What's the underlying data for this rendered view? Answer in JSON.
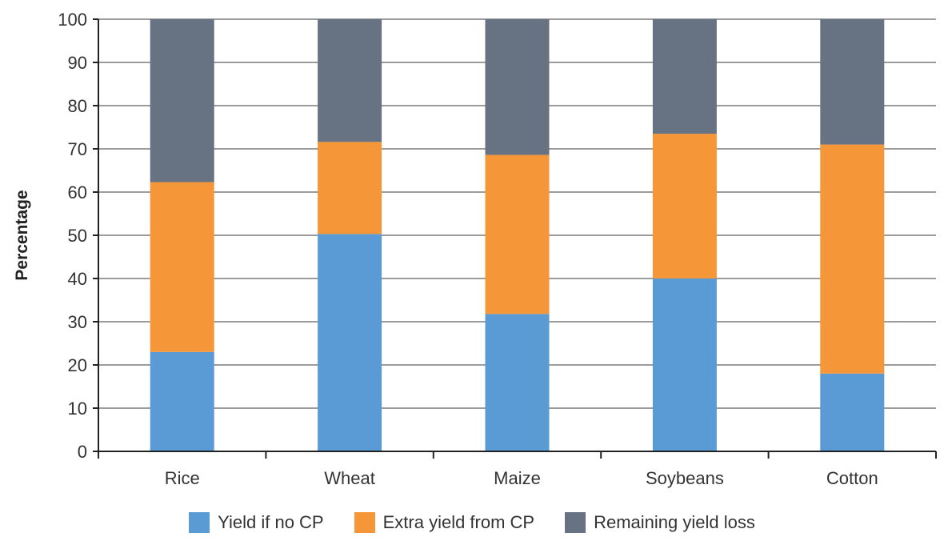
{
  "chart_data": {
    "type": "bar",
    "stacked": true,
    "title": "",
    "xlabel": "",
    "ylabel": "Percentage",
    "ylim": [
      0,
      100
    ],
    "yticks": [
      0,
      10,
      20,
      30,
      40,
      50,
      60,
      70,
      80,
      90,
      100
    ],
    "grid": true,
    "legend_position": "bottom",
    "categories": [
      "Rice",
      "Wheat",
      "Maize",
      "Soybeans",
      "Cotton"
    ],
    "series": [
      {
        "name": "Yield if no CP",
        "color": "#5b9bd5",
        "values": [
          23,
          50.3,
          31.8,
          40,
          18
        ]
      },
      {
        "name": "Extra yield from CP",
        "color": "#f59638",
        "values": [
          39.3,
          21.3,
          36.8,
          33.5,
          53
        ]
      },
      {
        "name": "Remaining yield loss",
        "color": "#677282",
        "values": [
          37.7,
          28.4,
          31.4,
          26.5,
          29
        ]
      }
    ]
  }
}
